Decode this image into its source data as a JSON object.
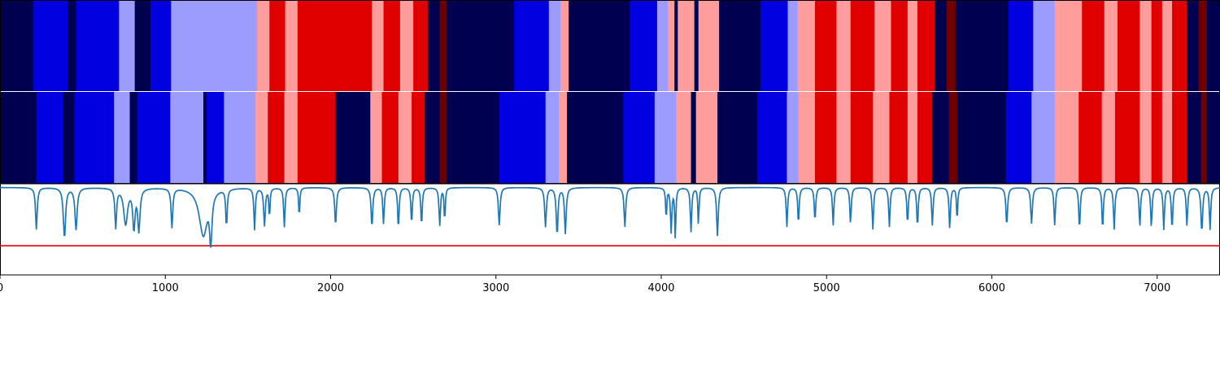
{
  "colors": {
    "navy": "#000050",
    "blue": "#0000e0",
    "light_blue": "#9c9cff",
    "light_red": "#ff9c9c",
    "red": "#e00000",
    "dark_red": "#700000",
    "trace": "#1f77b4",
    "threshold": "#e00000",
    "border": "#000000",
    "separator": "#ffffff"
  },
  "chart_data": {
    "type": "heatmap",
    "description_levels": [
      "navy",
      "blue",
      "light_blue",
      "light_red",
      "red",
      "dark_red"
    ],
    "x_range": [
      0,
      7380
    ],
    "tracks": [
      {
        "segments": [
          [
            0,
            200,
            "navy"
          ],
          [
            200,
            410,
            "blue"
          ],
          [
            410,
            460,
            "navy"
          ],
          [
            460,
            720,
            "blue"
          ],
          [
            720,
            815,
            "light_blue"
          ],
          [
            815,
            910,
            "navy"
          ],
          [
            910,
            1035,
            "blue"
          ],
          [
            1035,
            1555,
            "light_blue"
          ],
          [
            1555,
            1630,
            "light_red"
          ],
          [
            1630,
            1725,
            "red"
          ],
          [
            1725,
            1800,
            "light_red"
          ],
          [
            1800,
            2250,
            "red"
          ],
          [
            2250,
            2320,
            "light_red"
          ],
          [
            2320,
            2420,
            "red"
          ],
          [
            2420,
            2500,
            "light_red"
          ],
          [
            2500,
            2590,
            "red"
          ],
          [
            2590,
            2660,
            "navy"
          ],
          [
            2660,
            2700,
            "dark_red"
          ],
          [
            2700,
            3110,
            "navy"
          ],
          [
            3110,
            3320,
            "blue"
          ],
          [
            3320,
            3390,
            "light_blue"
          ],
          [
            3390,
            3440,
            "light_red"
          ],
          [
            3440,
            3810,
            "navy"
          ],
          [
            3810,
            3975,
            "blue"
          ],
          [
            3975,
            4040,
            "light_blue"
          ],
          [
            4040,
            4080,
            "light_red"
          ],
          [
            4080,
            4100,
            "navy"
          ],
          [
            4100,
            4200,
            "light_red"
          ],
          [
            4200,
            4225,
            "navy"
          ],
          [
            4225,
            4350,
            "light_red"
          ],
          [
            4350,
            4600,
            "navy"
          ],
          [
            4600,
            4765,
            "blue"
          ],
          [
            4765,
            4825,
            "light_blue"
          ],
          [
            4825,
            4930,
            "light_red"
          ],
          [
            4930,
            5060,
            "red"
          ],
          [
            5060,
            5145,
            "light_red"
          ],
          [
            5145,
            5290,
            "red"
          ],
          [
            5290,
            5390,
            "light_red"
          ],
          [
            5390,
            5490,
            "red"
          ],
          [
            5490,
            5550,
            "light_red"
          ],
          [
            5550,
            5655,
            "red"
          ],
          [
            5655,
            5725,
            "navy"
          ],
          [
            5725,
            5780,
            "dark_red"
          ],
          [
            5780,
            6100,
            "navy"
          ],
          [
            6100,
            6250,
            "blue"
          ],
          [
            6250,
            6380,
            "light_blue"
          ],
          [
            6380,
            6545,
            "light_red"
          ],
          [
            6545,
            6680,
            "red"
          ],
          [
            6680,
            6760,
            "light_red"
          ],
          [
            6760,
            6895,
            "red"
          ],
          [
            6895,
            6965,
            "light_red"
          ],
          [
            6965,
            7030,
            "red"
          ],
          [
            7030,
            7090,
            "light_red"
          ],
          [
            7090,
            7180,
            "red"
          ],
          [
            7180,
            7250,
            "navy"
          ],
          [
            7250,
            7300,
            "dark_red"
          ],
          [
            7300,
            7380,
            "navy"
          ]
        ]
      },
      {
        "segments": [
          [
            0,
            220,
            "navy"
          ],
          [
            220,
            380,
            "blue"
          ],
          [
            380,
            450,
            "navy"
          ],
          [
            450,
            690,
            "blue"
          ],
          [
            690,
            785,
            "light_blue"
          ],
          [
            785,
            830,
            "navy"
          ],
          [
            830,
            1030,
            "blue"
          ],
          [
            1030,
            1230,
            "light_blue"
          ],
          [
            1230,
            1250,
            "navy"
          ],
          [
            1250,
            1355,
            "blue"
          ],
          [
            1355,
            1545,
            "light_blue"
          ],
          [
            1545,
            1620,
            "light_red"
          ],
          [
            1620,
            1720,
            "red"
          ],
          [
            1720,
            1800,
            "light_red"
          ],
          [
            1800,
            2030,
            "red"
          ],
          [
            2030,
            2240,
            "navy"
          ],
          [
            2240,
            2310,
            "light_red"
          ],
          [
            2310,
            2410,
            "red"
          ],
          [
            2410,
            2490,
            "light_red"
          ],
          [
            2490,
            2570,
            "red"
          ],
          [
            2570,
            2660,
            "navy"
          ],
          [
            2660,
            2700,
            "dark_red"
          ],
          [
            2700,
            3020,
            "navy"
          ],
          [
            3020,
            3300,
            "blue"
          ],
          [
            3300,
            3380,
            "light_blue"
          ],
          [
            3380,
            3430,
            "light_red"
          ],
          [
            3430,
            3770,
            "navy"
          ],
          [
            3770,
            3960,
            "blue"
          ],
          [
            3960,
            4090,
            "light_blue"
          ],
          [
            4090,
            4180,
            "light_red"
          ],
          [
            4180,
            4210,
            "navy"
          ],
          [
            4210,
            4340,
            "light_red"
          ],
          [
            4340,
            4580,
            "navy"
          ],
          [
            4580,
            4760,
            "blue"
          ],
          [
            4760,
            4830,
            "light_blue"
          ],
          [
            4830,
            4930,
            "light_red"
          ],
          [
            4930,
            5060,
            "red"
          ],
          [
            5060,
            5145,
            "light_red"
          ],
          [
            5145,
            5280,
            "red"
          ],
          [
            5280,
            5380,
            "light_red"
          ],
          [
            5380,
            5490,
            "red"
          ],
          [
            5490,
            5550,
            "light_red"
          ],
          [
            5550,
            5640,
            "red"
          ],
          [
            5640,
            5740,
            "navy"
          ],
          [
            5740,
            5790,
            "dark_red"
          ],
          [
            5790,
            6085,
            "navy"
          ],
          [
            6085,
            6240,
            "blue"
          ],
          [
            6240,
            6380,
            "light_blue"
          ],
          [
            6380,
            6525,
            "light_red"
          ],
          [
            6525,
            6665,
            "red"
          ],
          [
            6665,
            6745,
            "light_red"
          ],
          [
            6745,
            6895,
            "red"
          ],
          [
            6895,
            6965,
            "light_red"
          ],
          [
            6965,
            7030,
            "red"
          ],
          [
            7030,
            7090,
            "light_red"
          ],
          [
            7090,
            7180,
            "red"
          ],
          [
            7180,
            7265,
            "navy"
          ],
          [
            7265,
            7300,
            "dark_red"
          ],
          [
            7300,
            7380,
            "navy"
          ]
        ]
      }
    ],
    "trace": {
      "baseline": 0.96,
      "threshold": 0.32,
      "ylim": [
        0,
        1
      ],
      "dips": [
        [
          220,
          0.45,
          6
        ],
        [
          390,
          0.35,
          8
        ],
        [
          460,
          0.45,
          8
        ],
        [
          700,
          0.48,
          6
        ],
        [
          760,
          0.52,
          14
        ],
        [
          810,
          0.48,
          8
        ],
        [
          840,
          0.45,
          8
        ],
        [
          1040,
          0.48,
          6
        ],
        [
          1230,
          0.38,
          30
        ],
        [
          1275,
          0.38,
          8
        ],
        [
          1370,
          0.5,
          5
        ],
        [
          1540,
          0.45,
          5
        ],
        [
          1600,
          0.5,
          6
        ],
        [
          1630,
          0.6,
          4
        ],
        [
          1720,
          0.48,
          5
        ],
        [
          1810,
          0.6,
          4
        ],
        [
          2030,
          0.5,
          6
        ],
        [
          2250,
          0.48,
          6
        ],
        [
          2320,
          0.52,
          5
        ],
        [
          2410,
          0.46,
          5
        ],
        [
          2490,
          0.52,
          5
        ],
        [
          2550,
          0.5,
          5
        ],
        [
          2660,
          0.5,
          5
        ],
        [
          2690,
          0.55,
          4
        ],
        [
          3020,
          0.5,
          6
        ],
        [
          3300,
          0.48,
          6
        ],
        [
          3370,
          0.38,
          6
        ],
        [
          3420,
          0.4,
          6
        ],
        [
          3780,
          0.48,
          6
        ],
        [
          4030,
          0.58,
          4
        ],
        [
          4060,
          0.42,
          5
        ],
        [
          4085,
          0.33,
          4
        ],
        [
          4180,
          0.42,
          5
        ],
        [
          4225,
          0.5,
          4
        ],
        [
          4340,
          0.37,
          6
        ],
        [
          4760,
          0.48,
          5
        ],
        [
          4830,
          0.52,
          5
        ],
        [
          4930,
          0.55,
          5
        ],
        [
          5040,
          0.5,
          5
        ],
        [
          5145,
          0.52,
          5
        ],
        [
          5280,
          0.45,
          5
        ],
        [
          5380,
          0.48,
          5
        ],
        [
          5490,
          0.52,
          5
        ],
        [
          5550,
          0.48,
          5
        ],
        [
          5640,
          0.5,
          5
        ],
        [
          5745,
          0.45,
          5
        ],
        [
          5790,
          0.55,
          4
        ],
        [
          6090,
          0.5,
          6
        ],
        [
          6240,
          0.52,
          6
        ],
        [
          6380,
          0.5,
          5
        ],
        [
          6530,
          0.45,
          5
        ],
        [
          6670,
          0.45,
          5
        ],
        [
          6740,
          0.45,
          5
        ],
        [
          6895,
          0.48,
          5
        ],
        [
          6965,
          0.48,
          5
        ],
        [
          7040,
          0.45,
          5
        ],
        [
          7090,
          0.45,
          5
        ],
        [
          7180,
          0.5,
          5
        ],
        [
          7270,
          0.42,
          6
        ],
        [
          7320,
          0.45,
          5
        ]
      ]
    },
    "x_ticks": [
      0,
      1000,
      2000,
      3000,
      4000,
      5000,
      6000,
      7000
    ],
    "tick_labels": [
      "0",
      "1000",
      "2000",
      "3000",
      "4000",
      "5000",
      "6000",
      "7000"
    ]
  }
}
